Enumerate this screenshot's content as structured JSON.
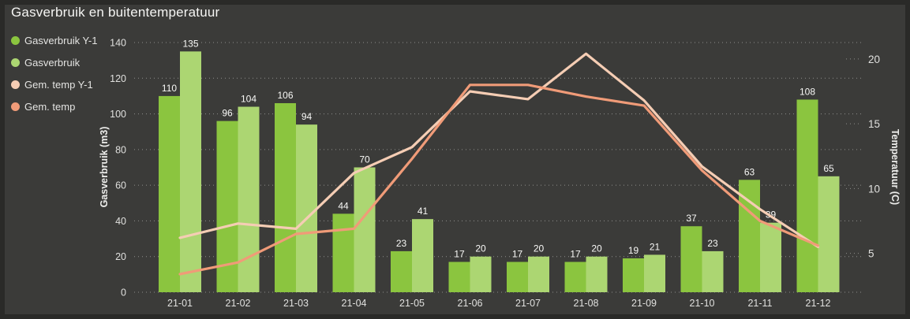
{
  "title": "Gasverbruik en buitentemperatuur",
  "legend": {
    "items": [
      {
        "label": "Gasverbruik Y-1",
        "color": "#8BC53F"
      },
      {
        "label": "Gasverbruik",
        "color": "#ACD672"
      },
      {
        "label": "Gem. temp Y-1",
        "color": "#F5CDB4"
      },
      {
        "label": "Gem. temp",
        "color": "#F09B78"
      }
    ]
  },
  "colors": {
    "background": "#3B3B39",
    "frame": "#2A2A28",
    "grid": "#8E8E8C",
    "tick_text": "#E0E0DE",
    "value_label_text": "#F8F8F6",
    "bar_y1": "#8BC53F",
    "bar_current": "#ACD672",
    "line_y1": "#F5CDB4",
    "line_current": "#F09B78"
  },
  "chart_data": {
    "type": "bar",
    "subtype": "combo-bar-line-dual-axis",
    "title": "Gasverbruik en buitentemperatuur",
    "categories": [
      "21-01",
      "21-02",
      "21-03",
      "21-04",
      "21-05",
      "21-06",
      "21-07",
      "21-08",
      "21-09",
      "21-10",
      "21-11",
      "21-12"
    ],
    "bar_series": [
      {
        "name": "Gasverbruik Y-1",
        "color": "#8BC53F",
        "values": [
          110,
          96,
          106,
          44,
          23,
          17,
          17,
          17,
          19,
          37,
          63,
          108
        ]
      },
      {
        "name": "Gasverbruik",
        "color": "#ACD672",
        "values": [
          135,
          104,
          94,
          70,
          41,
          20,
          20,
          20,
          21,
          23,
          39,
          65
        ]
      }
    ],
    "line_series": [
      {
        "name": "Gem. temp Y-1",
        "color": "#F5CDB4",
        "values": [
          6.2,
          7.3,
          6.9,
          11.2,
          13.2,
          17.5,
          16.9,
          20.4,
          16.8,
          11.7,
          8.4,
          5.5
        ]
      },
      {
        "name": "Gem. temp",
        "color": "#F09B78",
        "values": [
          3.4,
          4.3,
          6.5,
          6.9,
          12.3,
          18.0,
          18.0,
          17.1,
          16.4,
          11.4,
          7.5,
          5.6
        ]
      }
    ],
    "y_left": {
      "label": "Gasverbruik (m3)",
      "ticks": [
        0,
        20,
        40,
        60,
        80,
        100,
        120,
        140
      ],
      "range": [
        0,
        140
      ]
    },
    "y_right": {
      "label": "Temperatuur (C)",
      "ticks": [
        5,
        10,
        15,
        20
      ],
      "range": [
        2,
        21.27
      ]
    },
    "grid": true,
    "grid_style": "dotted",
    "legend_position": "top-left"
  }
}
